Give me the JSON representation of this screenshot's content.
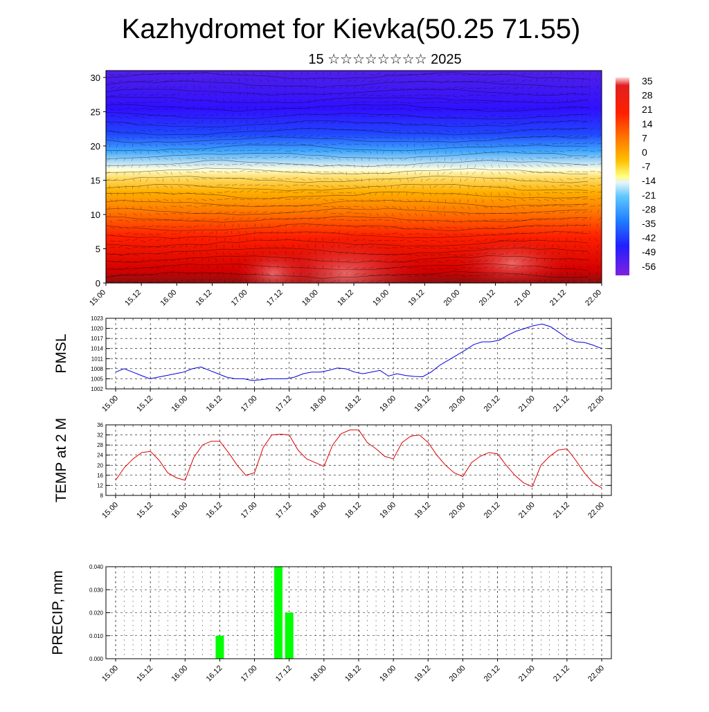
{
  "title": "Kazhydromet for Kievka(50.25 71.55)",
  "subtitle": "15 ☆☆☆☆☆☆☆☆ 2025",
  "time_labels": [
    "15.00",
    "15.12",
    "16.00",
    "16.12",
    "17.00",
    "17.12",
    "18.00",
    "18.12",
    "19.00",
    "19.12",
    "20.00",
    "20.12",
    "21.00",
    "21.12",
    "22.00"
  ],
  "chart_data": [
    {
      "type": "heatmap",
      "y_ticks": [
        0,
        5,
        10,
        15,
        20,
        25,
        30
      ],
      "ylim": [
        0,
        31
      ],
      "colorbar_labels": [
        "35",
        "28",
        "21",
        "14",
        "7",
        "0",
        "-7",
        "-14",
        "-21",
        "-28",
        "-35",
        "-42",
        "-49",
        "-56"
      ]
    },
    {
      "type": "line",
      "ylabel": "PMSL",
      "ylim": [
        1002,
        1023
      ],
      "y_ticks": [
        1002,
        1005,
        1008,
        1011,
        1014,
        1017,
        1020,
        1023
      ],
      "color": "#0000dd",
      "series": [
        {
          "values": [
            1007,
            1008,
            1007,
            1006,
            1005,
            1005.5,
            1006,
            1006.5,
            1007,
            1008,
            1008.5,
            1007.5,
            1006.5,
            1005.5,
            1005,
            1005,
            1004.5,
            1004.7,
            1005,
            1005,
            1005,
            1005.5,
            1006.5,
            1007,
            1007,
            1007.5,
            1008.2,
            1008,
            1007,
            1006.5,
            1007,
            1007.5,
            1005.8,
            1006.5,
            1006,
            1005.7,
            1005.6,
            1007,
            1009,
            1010.5,
            1012,
            1013.5,
            1015.2,
            1016,
            1016,
            1016.5,
            1018,
            1019.2,
            1020,
            1020.8,
            1021.3,
            1020.5,
            1018.8,
            1017,
            1016,
            1015.8,
            1015,
            1014
          ]
        }
      ]
    },
    {
      "type": "line",
      "ylabel": "TEMP at 2 M",
      "ylim": [
        8,
        36
      ],
      "y_ticks": [
        8,
        12,
        16,
        20,
        24,
        28,
        32,
        36
      ],
      "color": "#dd0000",
      "series": [
        {
          "values": [
            14,
            19,
            22.5,
            25,
            25.5,
            22,
            17,
            15,
            14,
            23,
            28,
            29.5,
            29.5,
            25,
            20,
            16,
            17,
            27,
            32,
            32.3,
            32,
            26,
            22.5,
            21,
            19.5,
            28,
            32.5,
            34,
            34,
            29,
            26.5,
            23.5,
            22.5,
            29,
            31.5,
            32,
            29,
            24,
            20,
            17,
            15.5,
            21,
            23.5,
            25,
            24.5,
            20,
            16,
            13,
            11.5,
            20,
            23.5,
            26,
            26.5,
            22,
            17,
            13,
            11
          ]
        }
      ]
    },
    {
      "type": "bar",
      "ylabel": "PRECIP, mm",
      "ylim": [
        0,
        0.04
      ],
      "y_ticks": [
        "0.000",
        "0.010",
        "0.020",
        "0.030",
        "0.040"
      ],
      "color": "#00ff00",
      "bars": [
        {
          "x": 24,
          "value": 0.01
        },
        {
          "x": 37.5,
          "value": 0.04
        },
        {
          "x": 40,
          "value": 0.02
        }
      ]
    }
  ]
}
